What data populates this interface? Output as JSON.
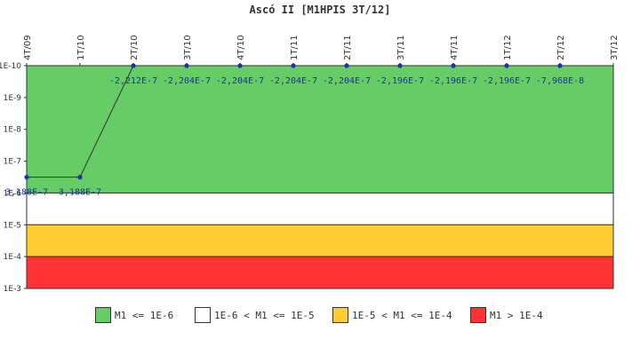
{
  "chart_data": {
    "type": "line",
    "title": "Ascó II [M1HPIS 3T/12]",
    "y_scale": "log",
    "y_range": [
      "1E-10",
      "1E-3"
    ],
    "ytick_labels": [
      "1E-10",
      "1E-9",
      "1E-8",
      "1E-7",
      "1E-6",
      "1E-5",
      "1E-4",
      "1E-3"
    ],
    "categories": [
      "4T/09",
      "1T/10",
      "2T/10",
      "3T/10",
      "4T/10",
      "1T/11",
      "2T/11",
      "3T/11",
      "4T/11",
      "1T/12",
      "2T/12",
      "3T/12"
    ],
    "series": [
      {
        "values": [
          3.188e-07,
          3.188e-07,
          -2.212e-07,
          -2.204e-07,
          -2.204e-07,
          -2.204e-07,
          -2.204e-07,
          -2.196e-07,
          -2.196e-07,
          -2.196e-07,
          -7.968e-08,
          null
        ],
        "labels": [
          "3,188E-7",
          "3,188E-7",
          "-2,212E-7",
          "-2,204E-7",
          "-2,204E-7",
          "-2,204E-7",
          "-2,204E-7",
          "-2,196E-7",
          "-2,196E-7",
          "-2,196E-7",
          "-7,968E-8",
          ""
        ]
      }
    ],
    "color_bands": [
      {
        "from": "1E-10",
        "to": "1E-6",
        "color": "#66cc66",
        "label": "M1 <= 1E-6"
      },
      {
        "from": "1E-6",
        "to": "1E-5",
        "color": "#ffffff",
        "label": "1E-6 < M1 <= 1E-5"
      },
      {
        "from": "1E-5",
        "to": "1E-4",
        "color": "#ffcc33",
        "label": "1E-5 < M1 <= 1E-4"
      },
      {
        "from": "1E-4",
        "to": "1E-3",
        "color": "#ff3333",
        "label": "M1 > 1E-4"
      }
    ],
    "line_color": "#333333",
    "marker_color": "#1f2fb0",
    "label_color": "#1f2fb0",
    "grid": false,
    "legend_position": "bottom"
  }
}
